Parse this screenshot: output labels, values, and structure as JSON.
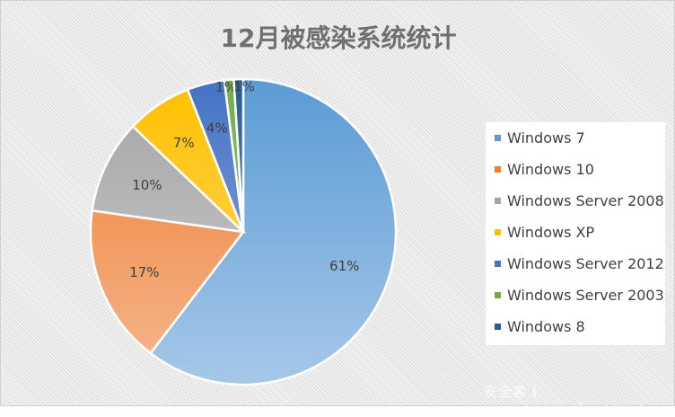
{
  "chart_data": {
    "type": "pie",
    "title": "12月被感染系统统计",
    "categories": [
      "Windows 7",
      "Windows 10",
      "Windows Server 2008",
      "Windows XP",
      "Windows Server 2012",
      "Windows Server 2003",
      "Windows 8"
    ],
    "values": [
      61,
      17,
      10,
      7,
      4,
      1,
      1
    ],
    "labels": [
      "61%",
      "17%",
      "10%",
      "7%",
      "4%",
      "1%",
      "1%"
    ],
    "colors": [
      "#5b9bd5",
      "#ed7d31",
      "#a5a5a5",
      "#ffc000",
      "#4472c4",
      "#70ad47",
      "#255e91"
    ],
    "legend_position": "right"
  },
  "watermark": "安全客 ( www.anquanke.com )"
}
